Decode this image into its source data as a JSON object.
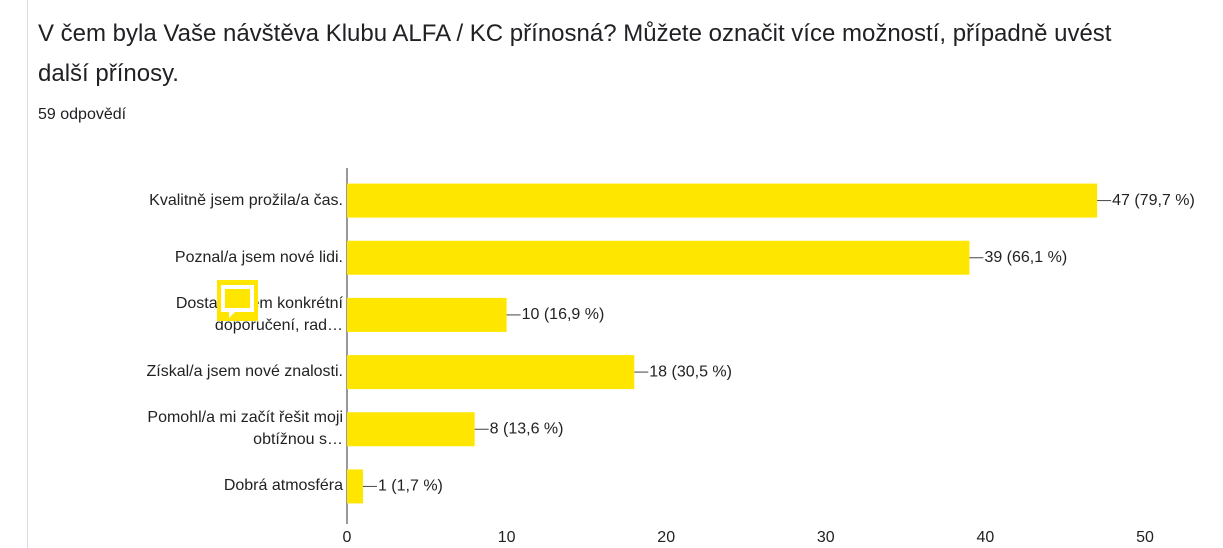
{
  "chart_data": {
    "type": "bar",
    "orientation": "horizontal",
    "title": "V čem byla Vaše návštěva Klubu ALFA / KC přínosná? Můžete označit více možností, případně uvést další přínosy.",
    "subtitle": "59 odpovědí",
    "categories": [
      "Kvalitně jsem prožila/a čas.",
      "Poznal/a jsem nové lidi.",
      "Dostal/a jsem konkrétní\ndoporučení, rad…",
      "Získal/a jsem nové znalosti.",
      "Pomohl/a mi začít řešit moji\nobtížnou s…",
      "Dobrá atmosféra"
    ],
    "values": [
      47,
      39,
      10,
      18,
      8,
      1
    ],
    "value_labels": [
      "47 (79,7 %)",
      "39 (66,1 %)",
      "10 (16,9 %)",
      "18 (30,5 %)",
      "8 (13,6 %)",
      "1 (1,7 %)"
    ],
    "color": "#ffe600",
    "xlim": [
      0,
      50
    ],
    "xticks": [
      0,
      10,
      20,
      30,
      40,
      50
    ],
    "grid": false
  }
}
